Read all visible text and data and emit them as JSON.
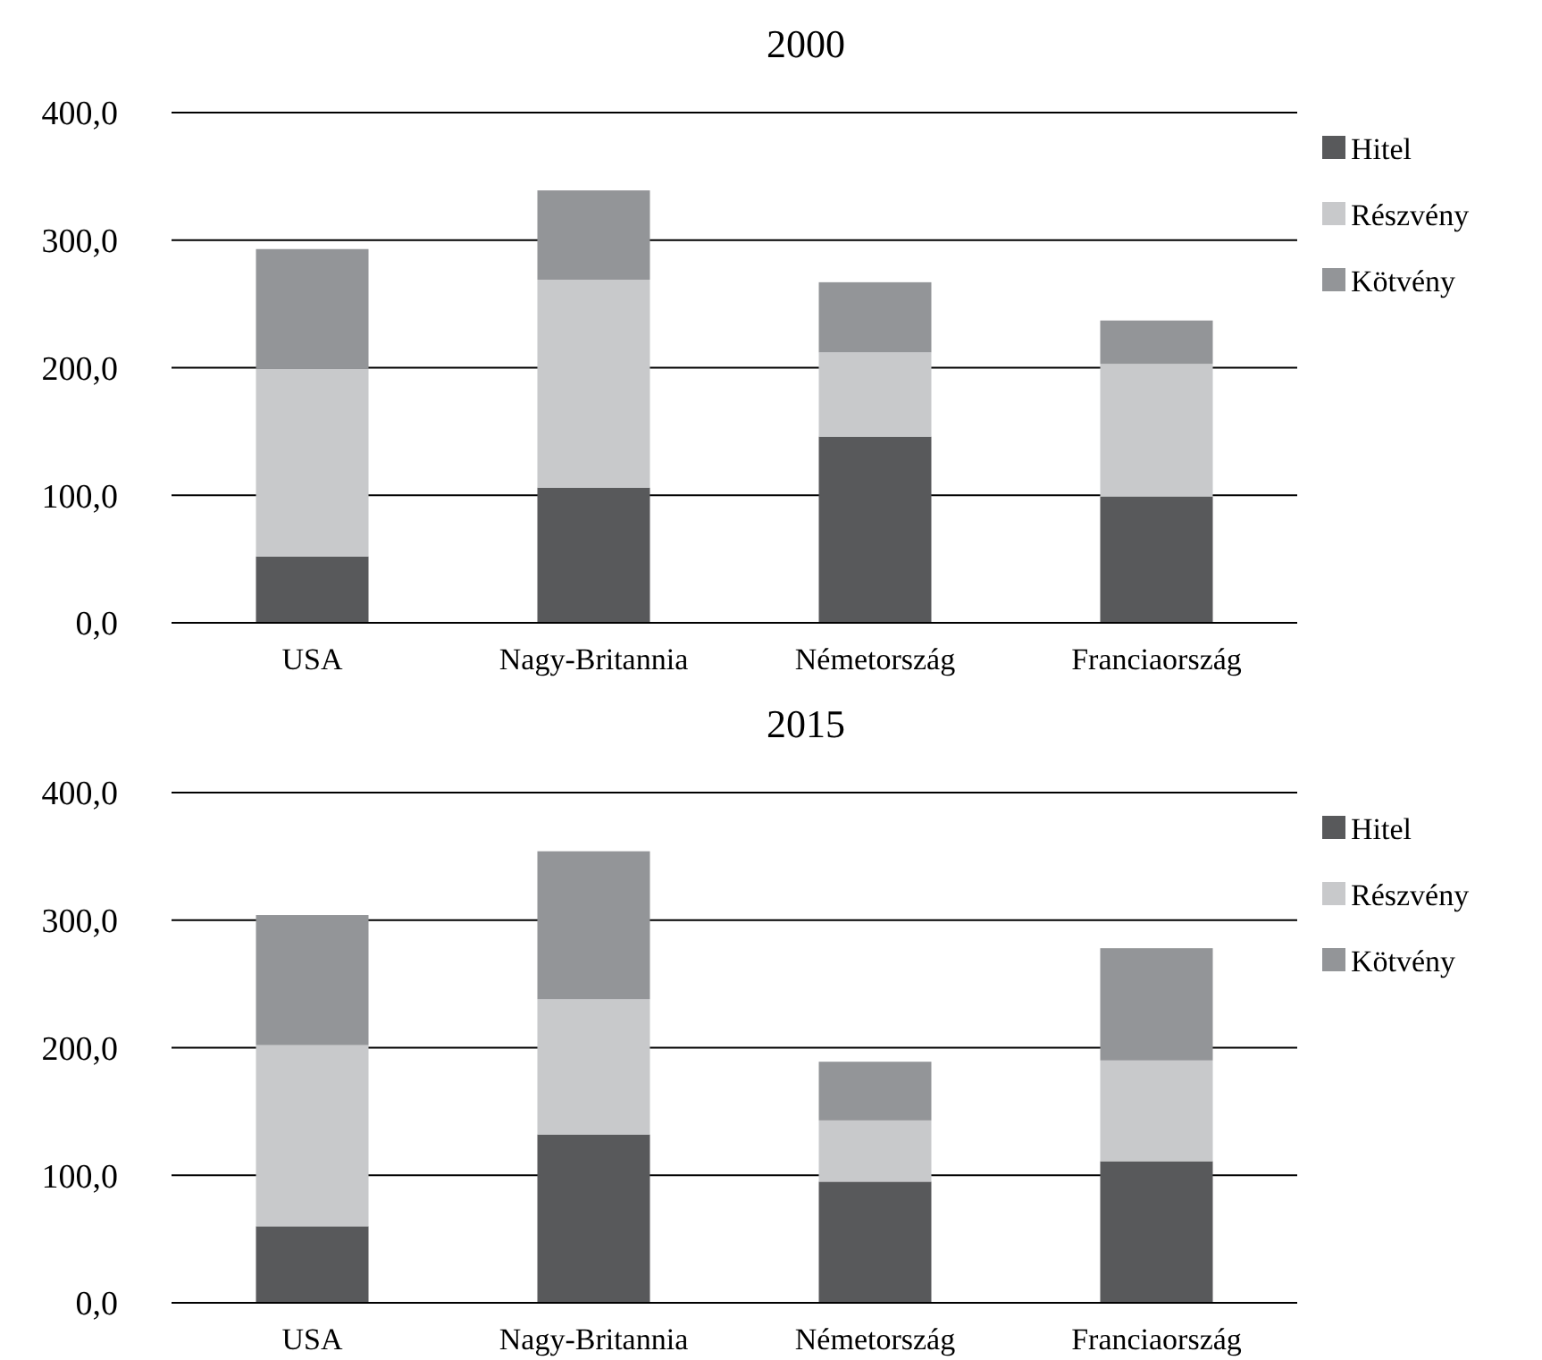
{
  "chart_data": [
    {
      "type": "bar",
      "title": "2000",
      "stacked": true,
      "grid": "y",
      "legend": "right",
      "categories": [
        "USA",
        "Nagy-Britannia",
        "Németország",
        "Franciaország"
      ],
      "series": [
        {
          "name": "Hitel",
          "color": "#58595b",
          "values": [
            52,
            106,
            146,
            99
          ]
        },
        {
          "name": "Részvény",
          "color": "#c8c9cb",
          "values": [
            147,
            163,
            66,
            104
          ]
        },
        {
          "name": "Kötvény",
          "color": "#939598",
          "values": [
            94,
            70,
            55,
            34
          ]
        }
      ],
      "ylim": [
        0,
        400
      ],
      "yticks": [
        {
          "value": 0,
          "label": "0,0"
        },
        {
          "value": 100,
          "label": "100,0"
        },
        {
          "value": 200,
          "label": "200,0"
        },
        {
          "value": 300,
          "label": "300,0"
        },
        {
          "value": 400,
          "label": "400,0"
        }
      ]
    },
    {
      "type": "bar",
      "title": "2015",
      "stacked": true,
      "grid": "y",
      "legend": "right",
      "categories": [
        "USA",
        "Nagy-Britannia",
        "Németország",
        "Franciaország"
      ],
      "series": [
        {
          "name": "Hitel",
          "color": "#58595b",
          "values": [
            60,
            132,
            95,
            111
          ]
        },
        {
          "name": "Részvény",
          "color": "#c8c9cb",
          "values": [
            142,
            106,
            48,
            79
          ]
        },
        {
          "name": "Kötvény",
          "color": "#939598",
          "values": [
            102,
            116,
            46,
            88
          ]
        }
      ],
      "ylim": [
        0,
        400
      ],
      "yticks": [
        {
          "value": 0,
          "label": "0,0"
        },
        {
          "value": 100,
          "label": "100,0"
        },
        {
          "value": 200,
          "label": "200,0"
        },
        {
          "value": 300,
          "label": "300,0"
        },
        {
          "value": 400,
          "label": "400,0"
        }
      ]
    }
  ]
}
